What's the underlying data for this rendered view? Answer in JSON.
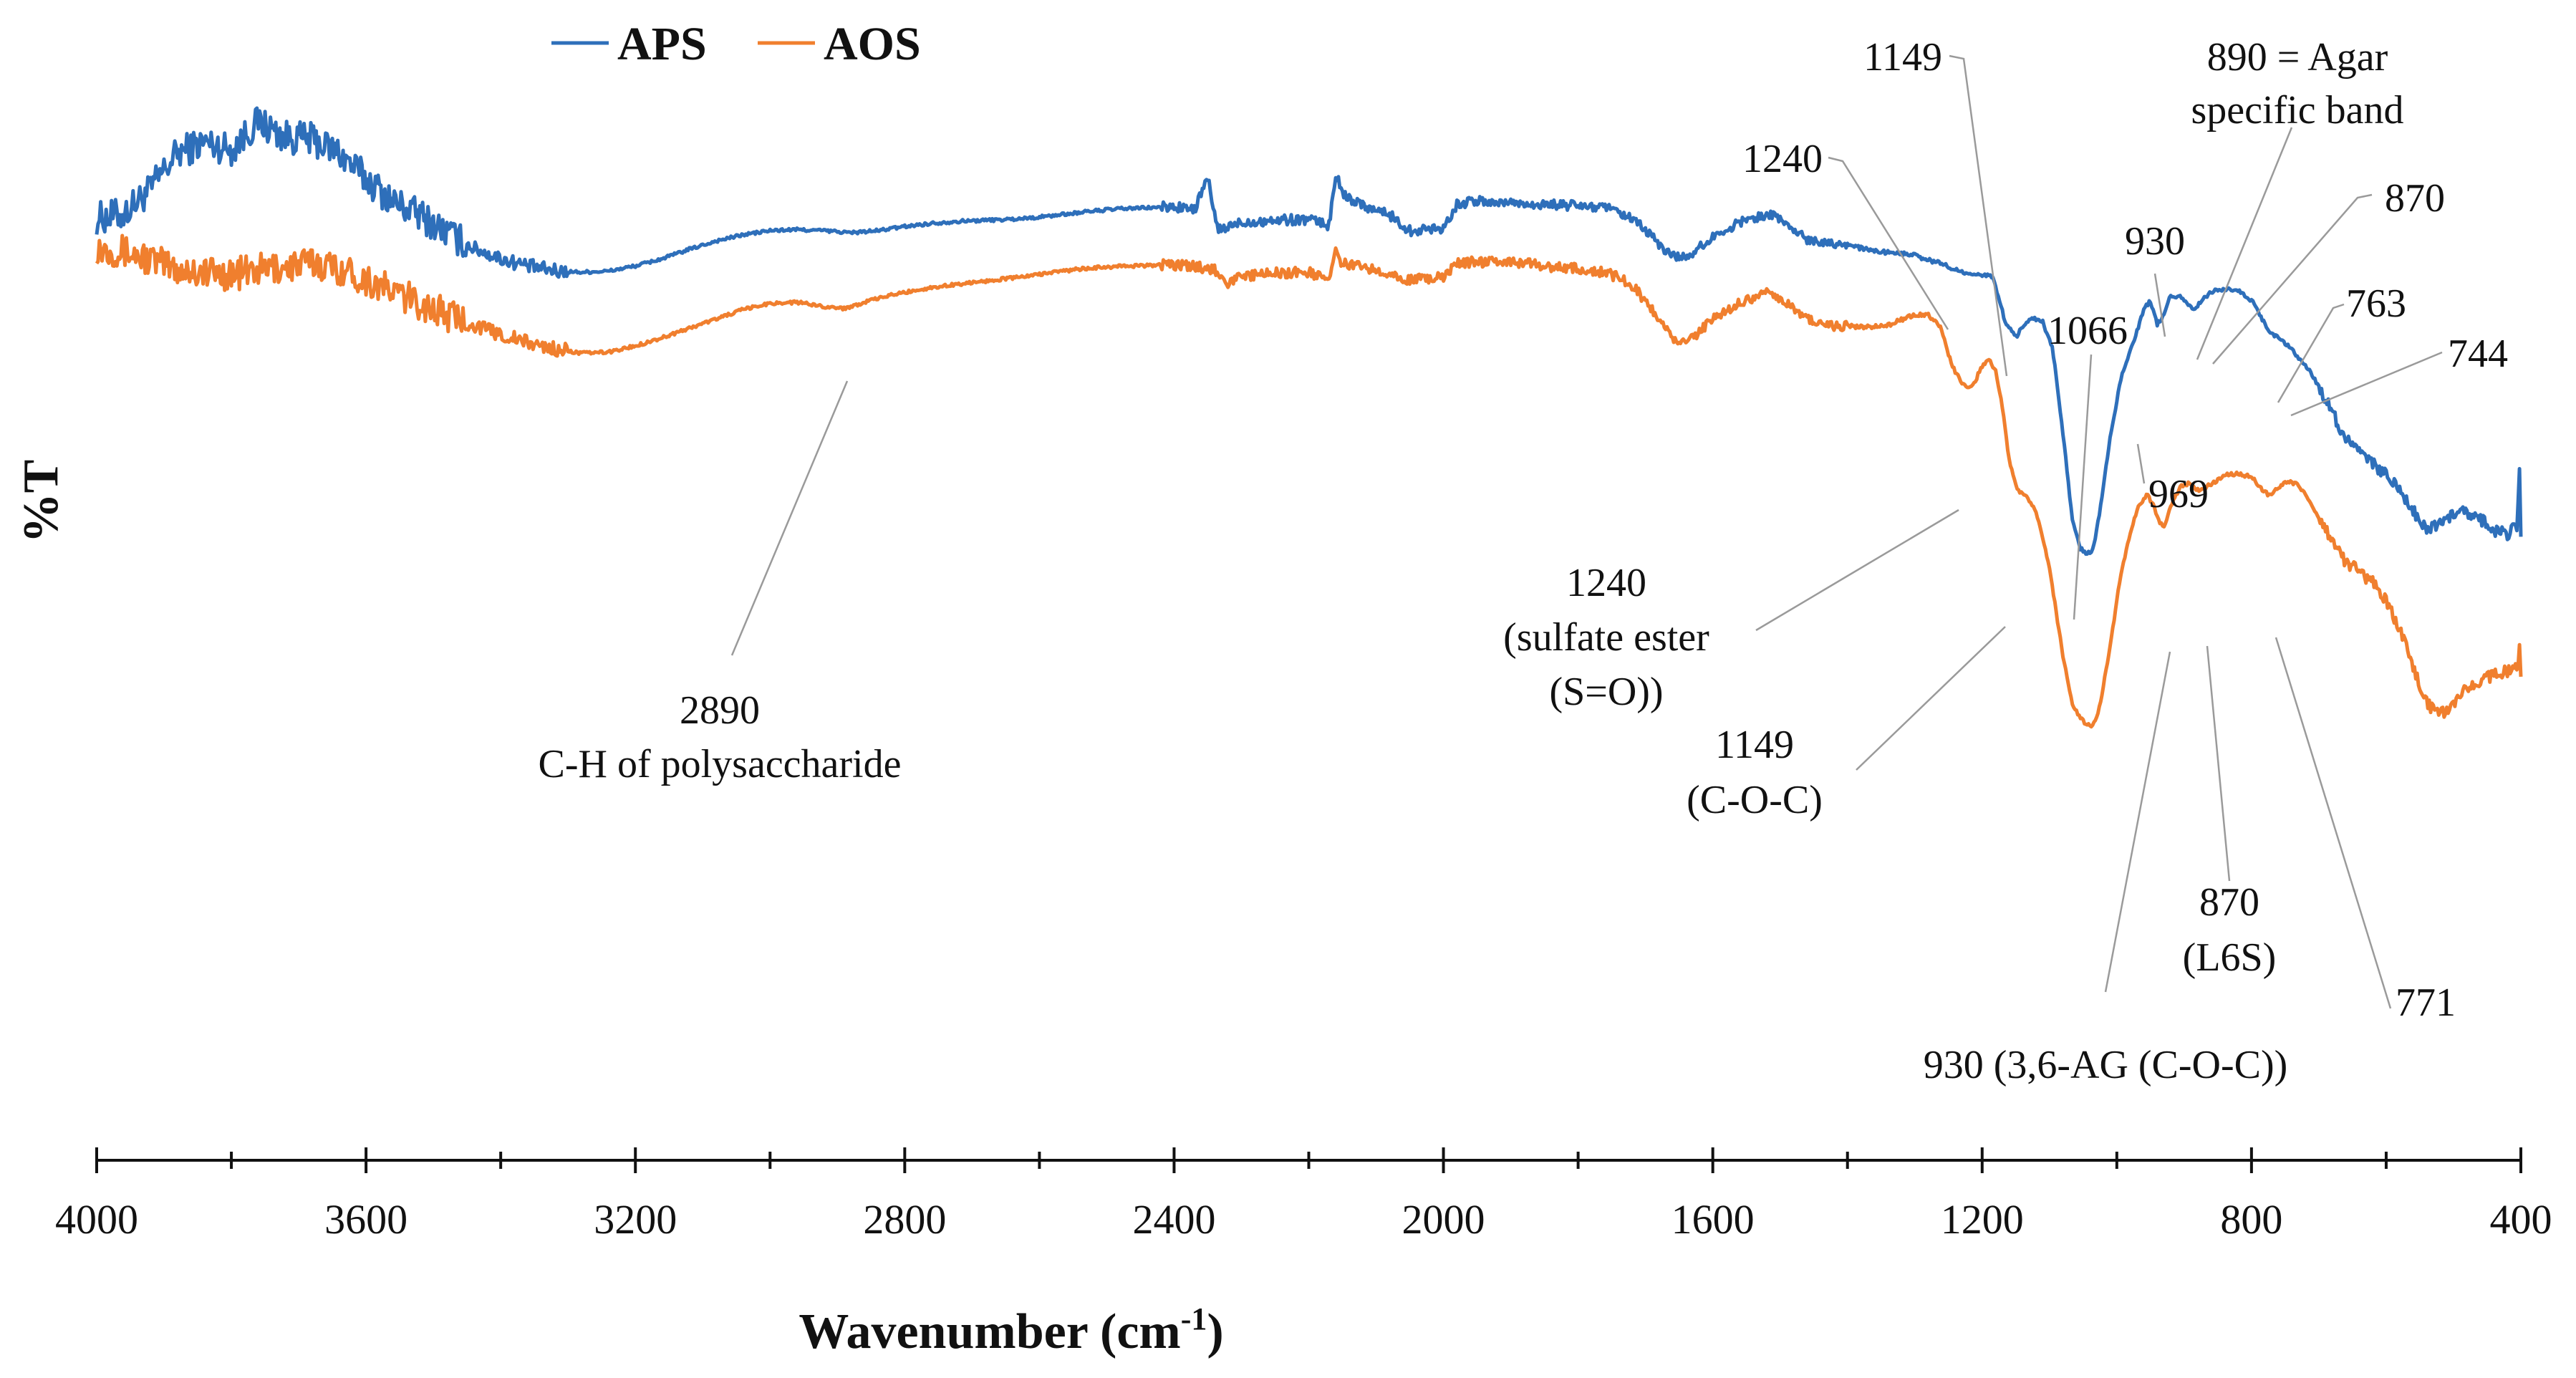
{
  "chart_data": {
    "type": "line",
    "title": "",
    "xlabel": "Wavenumber (cm",
    "xlabel_sup": "-1",
    "xlabel_suffix": ")",
    "ylabel": "%T",
    "xlim": [
      4000,
      400
    ],
    "ylim": [
      0,
      100
    ],
    "x_reversed": true,
    "grid": false,
    "legend_position": "top-left",
    "x_ticks": [
      4000,
      3600,
      3200,
      2800,
      2400,
      2000,
      1600,
      1200,
      800,
      400
    ],
    "x_tick_labels": [
      "4000",
      "3600",
      "3200",
      "2800",
      "2400",
      "2000",
      "1600",
      "1200",
      "800",
      "400"
    ],
    "series": [
      {
        "name": "APS",
        "color": "#2e6fba",
        "points": [
          [
            4000,
            85.2
          ],
          [
            3960,
            85.6
          ],
          [
            3920,
            88.0
          ],
          [
            3880,
            91.5
          ],
          [
            3840,
            92.5
          ],
          [
            3800,
            91.8
          ],
          [
            3760,
            94.5
          ],
          [
            3720,
            93.0
          ],
          [
            3680,
            92.8
          ],
          [
            3640,
            91.5
          ],
          [
            3600,
            89.0
          ],
          [
            3560,
            86.8
          ],
          [
            3520,
            85.5
          ],
          [
            3480,
            83.8
          ],
          [
            3440,
            82.3
          ],
          [
            3400,
            81.3
          ],
          [
            3360,
            80.6
          ],
          [
            3320,
            80.1
          ],
          [
            3280,
            80.0
          ],
          [
            3240,
            80.1
          ],
          [
            3200,
            80.6
          ],
          [
            3160,
            81.3
          ],
          [
            3120,
            82.2
          ],
          [
            3080,
            83.0
          ],
          [
            3040,
            83.6
          ],
          [
            3000,
            84.0
          ],
          [
            2960,
            84.1
          ],
          [
            2920,
            84.0
          ],
          [
            2880,
            83.8
          ],
          [
            2840,
            84.0
          ],
          [
            2800,
            84.4
          ],
          [
            2760,
            84.7
          ],
          [
            2720,
            84.9
          ],
          [
            2680,
            85.0
          ],
          [
            2640,
            85.1
          ],
          [
            2600,
            85.3
          ],
          [
            2560,
            85.6
          ],
          [
            2520,
            85.9
          ],
          [
            2480,
            86.1
          ],
          [
            2440,
            86.2
          ],
          [
            2400,
            86.3
          ],
          [
            2370,
            86.0
          ],
          [
            2350,
            89.0
          ],
          [
            2335,
            84.0
          ],
          [
            2300,
            84.8
          ],
          [
            2250,
            85.0
          ],
          [
            2200,
            85.1
          ],
          [
            2170,
            84.5
          ],
          [
            2160,
            89.5
          ],
          [
            2150,
            87.5
          ],
          [
            2120,
            86.5
          ],
          [
            2080,
            85.5
          ],
          [
            2050,
            84.0
          ],
          [
            2000,
            84.3
          ],
          [
            1980,
            86.5
          ],
          [
            1960,
            86.8
          ],
          [
            1900,
            86.7
          ],
          [
            1850,
            86.5
          ],
          [
            1800,
            86.4
          ],
          [
            1760,
            86.2
          ],
          [
            1730,
            85.4
          ],
          [
            1710,
            84.6
          ],
          [
            1690,
            83.4
          ],
          [
            1670,
            82.0
          ],
          [
            1650,
            81.4
          ],
          [
            1630,
            81.8
          ],
          [
            1600,
            83.4
          ],
          [
            1560,
            84.8
          ],
          [
            1520,
            85.6
          ],
          [
            1500,
            85.2
          ],
          [
            1480,
            84.0
          ],
          [
            1460,
            83.2
          ],
          [
            1440,
            83.0
          ],
          [
            1420,
            82.8
          ],
          [
            1400,
            82.7
          ],
          [
            1380,
            82.3
          ],
          [
            1360,
            82.0
          ],
          [
            1340,
            81.9
          ],
          [
            1320,
            81.8
          ],
          [
            1300,
            81.6
          ],
          [
            1280,
            81.2
          ],
          [
            1260,
            80.8
          ],
          [
            1240,
            80.3
          ],
          [
            1220,
            79.7
          ],
          [
            1200,
            79.7
          ],
          [
            1185,
            79.6
          ],
          [
            1175,
            77.5
          ],
          [
            1165,
            75.0
          ],
          [
            1149,
            73.8
          ],
          [
            1140,
            74.8
          ],
          [
            1125,
            75.6
          ],
          [
            1110,
            75.2
          ],
          [
            1095,
            72.5
          ],
          [
            1080,
            64.5
          ],
          [
            1066,
            56.0
          ],
          [
            1055,
            53.5
          ],
          [
            1045,
            52.8
          ],
          [
            1035,
            53.3
          ],
          [
            1025,
            57.0
          ],
          [
            1010,
            64.0
          ],
          [
            995,
            69.5
          ],
          [
            980,
            72.5
          ],
          [
            969,
            74.5
          ],
          [
            960,
            76.5
          ],
          [
            950,
            77.2
          ],
          [
            940,
            75.0
          ],
          [
            930,
            75.8
          ],
          [
            920,
            77.8
          ],
          [
            905,
            77.6
          ],
          [
            895,
            76.8
          ],
          [
            885,
            76.4
          ],
          [
            870,
            77.6
          ],
          [
            855,
            78.2
          ],
          [
            840,
            78.4
          ],
          [
            820,
            78.3
          ],
          [
            800,
            77.3
          ],
          [
            785,
            75.6
          ],
          [
            770,
            74.0
          ],
          [
            763,
            73.8
          ],
          [
            752,
            73.2
          ],
          [
            744,
            72.8
          ],
          [
            730,
            71.8
          ],
          [
            715,
            70.6
          ],
          [
            700,
            69.0
          ],
          [
            680,
            66.5
          ],
          [
            660,
            64.0
          ],
          [
            640,
            62.5
          ],
          [
            620,
            61.5
          ],
          [
            600,
            60.5
          ],
          [
            580,
            59.0
          ],
          [
            560,
            57.0
          ],
          [
            540,
            55.4
          ],
          [
            520,
            55.8
          ],
          [
            500,
            56.6
          ],
          [
            480,
            56.9
          ],
          [
            460,
            56.2
          ],
          [
            440,
            55.2
          ],
          [
            420,
            54.8
          ],
          [
            405,
            55.6
          ],
          [
            402,
            61.5
          ],
          [
            400,
            54.0
          ]
        ]
      },
      {
        "name": "AOS",
        "color": "#f07f2e",
        "points": [
          [
            4000,
            82.4
          ],
          [
            3960,
            82.0
          ],
          [
            3920,
            81.2
          ],
          [
            3880,
            80.3
          ],
          [
            3840,
            80.0
          ],
          [
            3800,
            79.8
          ],
          [
            3760,
            80.2
          ],
          [
            3720,
            80.5
          ],
          [
            3680,
            80.9
          ],
          [
            3640,
            80.4
          ],
          [
            3600,
            79.3
          ],
          [
            3560,
            78.1
          ],
          [
            3520,
            77.0
          ],
          [
            3480,
            75.9
          ],
          [
            3440,
            74.9
          ],
          [
            3400,
            74.0
          ],
          [
            3360,
            73.2
          ],
          [
            3320,
            72.6
          ],
          [
            3280,
            72.2
          ],
          [
            3240,
            72.3
          ],
          [
            3200,
            72.9
          ],
          [
            3160,
            73.7
          ],
          [
            3120,
            74.6
          ],
          [
            3080,
            75.5
          ],
          [
            3040,
            76.4
          ],
          [
            3000,
            77.0
          ],
          [
            2960,
            77.1
          ],
          [
            2920,
            76.7
          ],
          [
            2890,
            76.5
          ],
          [
            2860,
            77.1
          ],
          [
            2820,
            77.8
          ],
          [
            2780,
            78.3
          ],
          [
            2740,
            78.7
          ],
          [
            2700,
            79.0
          ],
          [
            2660,
            79.3
          ],
          [
            2620,
            79.6
          ],
          [
            2580,
            80.0
          ],
          [
            2540,
            80.3
          ],
          [
            2500,
            80.5
          ],
          [
            2460,
            80.6
          ],
          [
            2420,
            80.7
          ],
          [
            2380,
            80.6
          ],
          [
            2340,
            80.3
          ],
          [
            2320,
            79.0
          ],
          [
            2300,
            79.6
          ],
          [
            2250,
            79.9
          ],
          [
            2200,
            80.0
          ],
          [
            2170,
            79.3
          ],
          [
            2160,
            82.0
          ],
          [
            2150,
            80.8
          ],
          [
            2120,
            80.5
          ],
          [
            2080,
            80.0
          ],
          [
            2050,
            79.2
          ],
          [
            2000,
            79.6
          ],
          [
            1980,
            80.8
          ],
          [
            1960,
            81.0
          ],
          [
            1900,
            81.0
          ],
          [
            1850,
            80.6
          ],
          [
            1800,
            80.3
          ],
          [
            1760,
            80.0
          ],
          [
            1730,
            79.2
          ],
          [
            1710,
            78.0
          ],
          [
            1690,
            76.4
          ],
          [
            1670,
            74.5
          ],
          [
            1650,
            73.1
          ],
          [
            1630,
            73.6
          ],
          [
            1600,
            75.5
          ],
          [
            1560,
            77.1
          ],
          [
            1520,
            78.0
          ],
          [
            1500,
            77.5
          ],
          [
            1480,
            76.4
          ],
          [
            1460,
            75.5
          ],
          [
            1440,
            75.0
          ],
          [
            1420,
            74.8
          ],
          [
            1400,
            74.8
          ],
          [
            1380,
            74.7
          ],
          [
            1360,
            74.8
          ],
          [
            1340,
            74.9
          ],
          [
            1320,
            75.4
          ],
          [
            1300,
            75.9
          ],
          [
            1280,
            75.9
          ],
          [
            1260,
            74.5
          ],
          [
            1250,
            72.0
          ],
          [
            1240,
            70.3
          ],
          [
            1230,
            69.4
          ],
          [
            1220,
            68.9
          ],
          [
            1210,
            69.6
          ],
          [
            1200,
            71.0
          ],
          [
            1190,
            71.6
          ],
          [
            1180,
            70.5
          ],
          [
            1170,
            67.0
          ],
          [
            1160,
            62.0
          ],
          [
            1149,
            59.2
          ],
          [
            1135,
            58.4
          ],
          [
            1120,
            57.0
          ],
          [
            1100,
            51.5
          ],
          [
            1080,
            43.0
          ],
          [
            1066,
            38.5
          ],
          [
            1055,
            37.1
          ],
          [
            1045,
            36.4
          ],
          [
            1035,
            36.4
          ],
          [
            1025,
            38.2
          ],
          [
            1010,
            44.0
          ],
          [
            995,
            50.5
          ],
          [
            980,
            55.0
          ],
          [
            969,
            57.3
          ],
          [
            955,
            58.6
          ],
          [
            945,
            57.4
          ],
          [
            935,
            55.8
          ],
          [
            930,
            55.5
          ],
          [
            920,
            57.5
          ],
          [
            905,
            59.4
          ],
          [
            890,
            59.7
          ],
          [
            880,
            59.0
          ],
          [
            870,
            59.2
          ],
          [
            855,
            59.8
          ],
          [
            840,
            60.5
          ],
          [
            820,
            60.6
          ],
          [
            800,
            60.3
          ],
          [
            785,
            59.1
          ],
          [
            771,
            58.4
          ],
          [
            760,
            59.3
          ],
          [
            745,
            59.9
          ],
          [
            730,
            59.5
          ],
          [
            715,
            58.0
          ],
          [
            700,
            56.4
          ],
          [
            680,
            54.0
          ],
          [
            660,
            52.0
          ],
          [
            640,
            51.2
          ],
          [
            620,
            50.1
          ],
          [
            600,
            48.3
          ],
          [
            580,
            45.8
          ],
          [
            560,
            42.0
          ],
          [
            540,
            38.5
          ],
          [
            520,
            37.4
          ],
          [
            500,
            38.4
          ],
          [
            480,
            39.9
          ],
          [
            460,
            40.6
          ],
          [
            440,
            41.2
          ],
          [
            420,
            41.6
          ],
          [
            405,
            41.8
          ],
          [
            402,
            44.4
          ],
          [
            400,
            40.6
          ]
        ]
      }
    ],
    "annotations": [
      {
        "lines": [
          "2890",
          "C-H of polysaccharide"
        ]
      },
      {
        "lines": [
          "1240",
          "(sulfate ester",
          "(S=O))"
        ]
      },
      {
        "lines": [
          "1149",
          "(C-O-C)"
        ]
      },
      {
        "lines": [
          "930 (3,6-AG (C-O-C))"
        ]
      },
      {
        "lines": [
          "870",
          "(L6S)"
        ]
      },
      {
        "lines": [
          "771"
        ]
      },
      {
        "lines": [
          "1240"
        ]
      },
      {
        "lines": [
          "1149"
        ]
      },
      {
        "lines": [
          "890 = Agar",
          "specific band"
        ]
      },
      {
        "lines": [
          "870"
        ]
      },
      {
        "lines": [
          "930"
        ]
      },
      {
        "lines": [
          "1066"
        ]
      },
      {
        "lines": [
          "763"
        ]
      },
      {
        "lines": [
          "744"
        ]
      },
      {
        "lines": [
          "969"
        ]
      }
    ]
  }
}
